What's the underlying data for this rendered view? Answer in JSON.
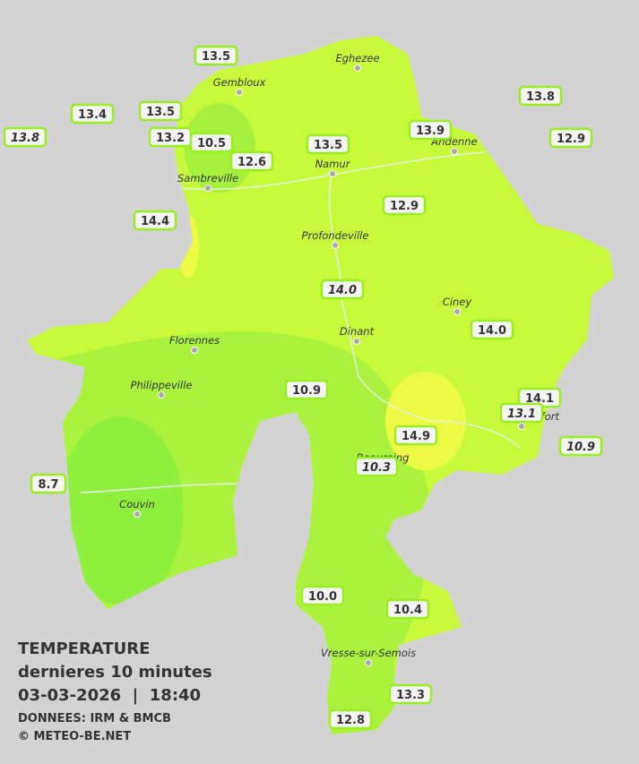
{
  "title": {
    "line1": "TEMPERATURE",
    "line2": "dernieres 10 minutes",
    "line3": "03-03-2026  |  18:40",
    "source": "DONNEES: IRM & BMCB",
    "copyright": "© METEO-BE.NET"
  },
  "cities": [
    "Eghezee",
    "Gembloux",
    "Andenne",
    "Namur",
    "Sambreville",
    "Profondeville",
    "Ciney",
    "Dinant",
    "Florennes",
    "Philippeville",
    "Couvin",
    "Rochefort",
    "Beauraing",
    "Vresse-sur-Semois"
  ],
  "stations": [
    {
      "label": "13.5",
      "italic": false
    },
    {
      "label": "13.4",
      "italic": false
    },
    {
      "label": "13.5",
      "italic": false
    },
    {
      "label": "13.8",
      "italic": true
    },
    {
      "label": "13.2",
      "italic": false
    },
    {
      "label": "10.5",
      "italic": false
    },
    {
      "label": "12.6",
      "italic": false
    },
    {
      "label": "13.5",
      "italic": false
    },
    {
      "label": "13.9",
      "italic": false
    },
    {
      "label": "13.8",
      "italic": false
    },
    {
      "label": "12.9",
      "italic": false
    },
    {
      "label": "14.4",
      "italic": false
    },
    {
      "label": "12.9",
      "italic": false
    },
    {
      "label": "14.0",
      "italic": true
    },
    {
      "label": "14.0",
      "italic": false
    },
    {
      "label": "10.9",
      "italic": false
    },
    {
      "label": "14.1",
      "italic": false
    },
    {
      "label": "13.1",
      "italic": true
    },
    {
      "label": "10.9",
      "italic": true
    },
    {
      "label": "14.9",
      "italic": false
    },
    {
      "label": "10.3",
      "italic": true
    },
    {
      "label": "8.7",
      "italic": false
    },
    {
      "label": "10.0",
      "italic": false
    },
    {
      "label": "10.4",
      "italic": false
    },
    {
      "label": "13.3",
      "italic": false
    },
    {
      "label": "12.8",
      "italic": false
    }
  ]
}
